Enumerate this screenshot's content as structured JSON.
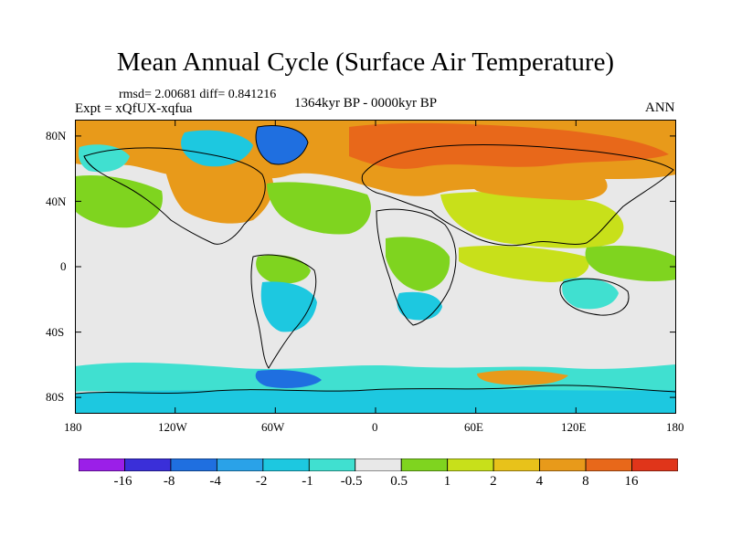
{
  "title": "Mean Annual Cycle (Surface Air Temperature)",
  "stats_line": "rmsd= 2.00681 diff= 0.841216",
  "experiment_line": "Expt = xQfUX-xqfua",
  "period_line": "1364kyr BP - 0000kyr BP",
  "season": "ANN",
  "y_axis_labels": [
    "80N",
    "40N",
    "0",
    "40S",
    "80S"
  ],
  "x_axis_labels": [
    "180",
    "120W",
    "60W",
    "0",
    "60E",
    "120E",
    "180"
  ],
  "colorbar": {
    "colors": [
      "#9b1fe8",
      "#3a2fd9",
      "#1f6fe0",
      "#2aa2e8",
      "#1dc8e0",
      "#40e0d0",
      "#e8e8e8",
      "#7fd41f",
      "#c8e01a",
      "#e8c21a",
      "#e89a1a",
      "#e8681a",
      "#e0351a"
    ],
    "labels": [
      "-16",
      "-8",
      "-4",
      "-2",
      "-1",
      "-0.5",
      "0.5",
      "1",
      "2",
      "4",
      "8",
      "16"
    ]
  },
  "map_colors": {
    "neutral": "#e8e8e8",
    "ocean_pos_light": "#9ad81e",
    "green": "#7fd41f",
    "yellow_green": "#c8e01a",
    "yellow": "#e8c21a",
    "orange": "#e89a1a",
    "dark_orange": "#e8681a",
    "cyan": "#1dc8e0",
    "blue": "#1f6fe0",
    "coast": "#000000"
  }
}
